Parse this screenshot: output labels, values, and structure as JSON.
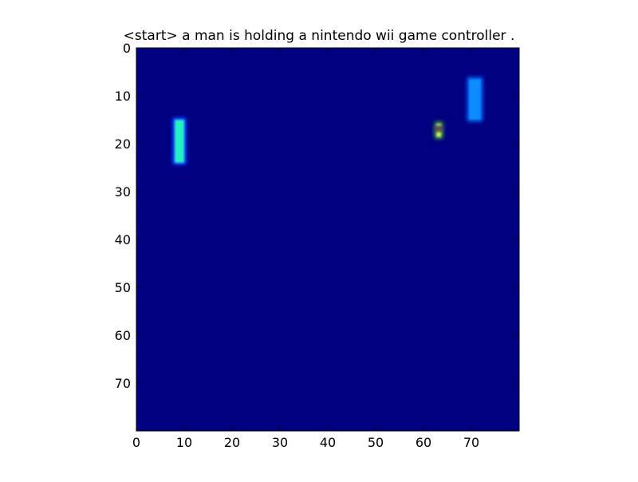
{
  "chart_data": {
    "type": "heatmap",
    "title": "<start> a man is holding a nintendo wii game controller .",
    "xlabel": "",
    "ylabel": "",
    "xlim": [
      0,
      80
    ],
    "ylim": [
      80,
      0
    ],
    "xticks": [
      0,
      10,
      20,
      30,
      40,
      50,
      60,
      70
    ],
    "yticks": [
      0,
      10,
      20,
      30,
      40,
      50,
      60,
      70
    ],
    "grid": false,
    "colormap": "jet",
    "background_color": "#000080",
    "regions": [
      {
        "name": "left-bar",
        "x": [
          8,
          10
        ],
        "y": [
          15,
          24
        ],
        "color": "#27f0c8",
        "halo": "#0a3cff"
      },
      {
        "name": "right-bar",
        "x": [
          69.5,
          72
        ],
        "y": [
          6.5,
          15
        ],
        "color": "#0a8cff",
        "halo": "#0050e0"
      },
      {
        "name": "dot-top",
        "x": [
          62.7,
          63.7
        ],
        "y": [
          15.8,
          16.8
        ],
        "color": "#c8e05a",
        "halo": "#2a7a4a"
      },
      {
        "name": "dot-middle",
        "x": [
          62.7,
          63.7
        ],
        "y": [
          16.8,
          17.6
        ],
        "color": "#d23c2c",
        "halo": "#3a3a70"
      },
      {
        "name": "dot-bottom",
        "x": [
          62.7,
          63.7
        ],
        "y": [
          17.6,
          18.6
        ],
        "color": "#d7ea64",
        "halo": "#2a7a4a"
      }
    ]
  }
}
